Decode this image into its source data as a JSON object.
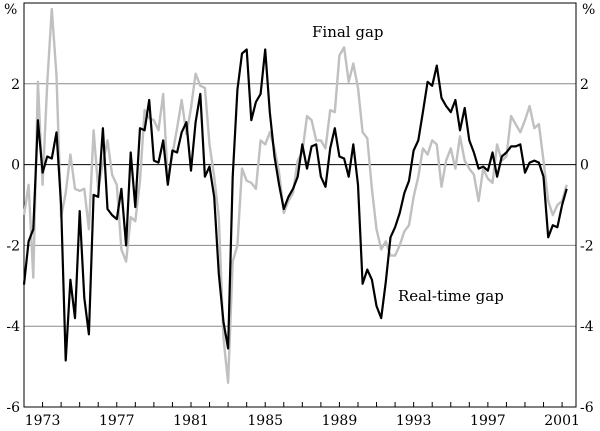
{
  "chart_data": {
    "type": "line",
    "title": "",
    "xlabel": "",
    "ylabel": "%",
    "y_unit_left": "%",
    "y_unit_right": "%",
    "xlim": [
      1972.0,
      2001.75
    ],
    "ylim": [
      -6,
      4
    ],
    "yticks": [
      -6,
      -4,
      -2,
      0,
      2
    ],
    "ytick_labels": [
      "-6",
      "-4",
      "-2",
      "0",
      "2"
    ],
    "xticks": [
      1973,
      1977,
      1981,
      1985,
      1989,
      1993,
      1997,
      2001
    ],
    "xtick_labels": [
      "1973",
      "1977",
      "1981",
      "1985",
      "1989",
      "1993",
      "1997",
      "2001"
    ],
    "gridlines": true,
    "annotations": [
      {
        "text": "Final gap",
        "series": "Final gap"
      },
      {
        "text": "Real-time gap",
        "series": "Real-time gap"
      }
    ],
    "series": [
      {
        "name": "Real-time gap",
        "color": "#000000",
        "points": [
          [
            1972.0,
            -2.97
          ],
          [
            1972.25,
            -1.9
          ],
          [
            1972.5,
            -1.6
          ],
          [
            1972.75,
            1.1
          ],
          [
            1973.0,
            -0.2
          ],
          [
            1973.25,
            0.2
          ],
          [
            1973.5,
            0.15
          ],
          [
            1973.75,
            0.8
          ],
          [
            1974.0,
            -1.0
          ],
          [
            1974.25,
            -4.85
          ],
          [
            1974.5,
            -2.85
          ],
          [
            1974.75,
            -3.8
          ],
          [
            1975.0,
            -1.15
          ],
          [
            1975.25,
            -3.3
          ],
          [
            1975.5,
            -4.2
          ],
          [
            1975.75,
            -0.75
          ],
          [
            1976.0,
            -0.8
          ],
          [
            1976.25,
            0.9
          ],
          [
            1976.5,
            -1.1
          ],
          [
            1976.75,
            -1.25
          ],
          [
            1977.0,
            -1.35
          ],
          [
            1977.25,
            -0.6
          ],
          [
            1977.5,
            -2.0
          ],
          [
            1977.75,
            0.3
          ],
          [
            1978.0,
            -1.05
          ],
          [
            1978.25,
            0.9
          ],
          [
            1978.5,
            0.85
          ],
          [
            1978.75,
            1.6
          ],
          [
            1979.0,
            0.1
          ],
          [
            1979.25,
            0.05
          ],
          [
            1979.5,
            0.6
          ],
          [
            1979.75,
            -0.5
          ],
          [
            1980.0,
            0.35
          ],
          [
            1980.25,
            0.3
          ],
          [
            1980.5,
            0.8
          ],
          [
            1980.75,
            1.05
          ],
          [
            1981.0,
            -0.15
          ],
          [
            1981.25,
            1.05
          ],
          [
            1981.5,
            1.75
          ],
          [
            1981.75,
            -0.3
          ],
          [
            1982.0,
            -0.05
          ],
          [
            1982.25,
            -0.8
          ],
          [
            1982.5,
            -2.7
          ],
          [
            1982.75,
            -3.9
          ],
          [
            1983.0,
            -4.55
          ],
          [
            1983.25,
            -0.3
          ],
          [
            1983.5,
            1.85
          ],
          [
            1983.75,
            2.75
          ],
          [
            1984.0,
            2.85
          ],
          [
            1984.25,
            1.1
          ],
          [
            1984.5,
            1.55
          ],
          [
            1984.75,
            1.75
          ],
          [
            1985.0,
            2.85
          ],
          [
            1985.25,
            1.3
          ],
          [
            1985.5,
            0.2
          ],
          [
            1985.75,
            -0.5
          ],
          [
            1986.0,
            -1.1
          ],
          [
            1986.25,
            -0.8
          ],
          [
            1986.5,
            -0.6
          ],
          [
            1986.75,
            -0.3
          ],
          [
            1987.0,
            0.5
          ],
          [
            1987.25,
            -0.1
          ],
          [
            1987.5,
            0.45
          ],
          [
            1987.75,
            0.5
          ],
          [
            1988.0,
            -0.3
          ],
          [
            1988.25,
            -0.55
          ],
          [
            1988.5,
            0.4
          ],
          [
            1988.75,
            0.9
          ],
          [
            1989.0,
            0.2
          ],
          [
            1989.25,
            0.15
          ],
          [
            1989.5,
            -0.3
          ],
          [
            1989.75,
            0.5
          ],
          [
            1990.0,
            -0.5
          ],
          [
            1990.25,
            -2.95
          ],
          [
            1990.5,
            -2.6
          ],
          [
            1990.75,
            -2.85
          ],
          [
            1991.0,
            -3.5
          ],
          [
            1991.25,
            -3.8
          ],
          [
            1991.5,
            -2.9
          ],
          [
            1991.75,
            -1.8
          ],
          [
            1992.0,
            -1.55
          ],
          [
            1992.25,
            -1.2
          ],
          [
            1992.5,
            -0.7
          ],
          [
            1992.75,
            -0.4
          ],
          [
            1993.0,
            0.35
          ],
          [
            1993.25,
            0.6
          ],
          [
            1993.5,
            1.3
          ],
          [
            1993.75,
            2.05
          ],
          [
            1994.0,
            1.95
          ],
          [
            1994.25,
            2.45
          ],
          [
            1994.5,
            1.65
          ],
          [
            1994.75,
            1.45
          ],
          [
            1995.0,
            1.3
          ],
          [
            1995.25,
            1.6
          ],
          [
            1995.5,
            0.85
          ],
          [
            1995.75,
            1.4
          ],
          [
            1996.0,
            0.6
          ],
          [
            1996.25,
            0.3
          ],
          [
            1996.5,
            -0.1
          ],
          [
            1996.75,
            -0.05
          ],
          [
            1997.0,
            -0.15
          ],
          [
            1997.25,
            0.3
          ],
          [
            1997.5,
            -0.3
          ],
          [
            1997.75,
            0.2
          ],
          [
            1998.0,
            0.3
          ],
          [
            1998.25,
            0.45
          ],
          [
            1998.5,
            0.45
          ],
          [
            1998.75,
            0.5
          ],
          [
            1999.0,
            -0.2
          ],
          [
            1999.25,
            0.05
          ],
          [
            1999.5,
            0.1
          ],
          [
            1999.75,
            0.05
          ],
          [
            2000.0,
            -0.3
          ],
          [
            2000.25,
            -1.8
          ],
          [
            2000.5,
            -1.5
          ],
          [
            2000.75,
            -1.55
          ],
          [
            2001.0,
            -1.0
          ],
          [
            2001.25,
            -0.6
          ]
        ]
      },
      {
        "name": "Final gap",
        "color": "#c0c0c0",
        "points": [
          [
            1972.0,
            -1.25
          ],
          [
            1972.25,
            -0.5
          ],
          [
            1972.5,
            -2.8
          ],
          [
            1972.75,
            2.05
          ],
          [
            1973.0,
            -0.5
          ],
          [
            1973.25,
            2.0
          ],
          [
            1973.5,
            3.85
          ],
          [
            1973.75,
            2.2
          ],
          [
            1974.0,
            -1.3
          ],
          [
            1974.25,
            -0.7
          ],
          [
            1974.5,
            0.25
          ],
          [
            1974.75,
            -0.6
          ],
          [
            1975.0,
            -0.65
          ],
          [
            1975.25,
            -0.6
          ],
          [
            1975.5,
            -1.6
          ],
          [
            1975.75,
            0.85
          ],
          [
            1976.0,
            -0.6
          ],
          [
            1976.25,
            0.05
          ],
          [
            1976.5,
            0.6
          ],
          [
            1976.75,
            -0.25
          ],
          [
            1977.0,
            -0.5
          ],
          [
            1977.25,
            -2.1
          ],
          [
            1977.5,
            -2.4
          ],
          [
            1977.75,
            -1.3
          ],
          [
            1978.0,
            -1.4
          ],
          [
            1978.25,
            -0.4
          ],
          [
            1978.5,
            1.35
          ],
          [
            1978.75,
            1.15
          ],
          [
            1979.0,
            1.1
          ],
          [
            1979.25,
            0.85
          ],
          [
            1979.5,
            1.75
          ],
          [
            1979.75,
            -0.4
          ],
          [
            1980.0,
            0.25
          ],
          [
            1980.25,
            0.9
          ],
          [
            1980.5,
            1.6
          ],
          [
            1980.75,
            0.75
          ],
          [
            1981.0,
            1.4
          ],
          [
            1981.25,
            2.25
          ],
          [
            1981.5,
            1.95
          ],
          [
            1981.75,
            1.9
          ],
          [
            1982.0,
            0.5
          ],
          [
            1982.25,
            -0.3
          ],
          [
            1982.5,
            -1.3
          ],
          [
            1982.75,
            -4.3
          ],
          [
            1983.0,
            -5.4
          ],
          [
            1983.25,
            -2.4
          ],
          [
            1983.5,
            -2.0
          ],
          [
            1983.75,
            -0.1
          ],
          [
            1984.0,
            -0.4
          ],
          [
            1984.25,
            -0.45
          ],
          [
            1984.5,
            -0.6
          ],
          [
            1984.75,
            0.6
          ],
          [
            1985.0,
            0.5
          ],
          [
            1985.25,
            0.8
          ],
          [
            1985.5,
            0.4
          ],
          [
            1985.75,
            -0.2
          ],
          [
            1986.0,
            -1.2
          ],
          [
            1986.25,
            -0.9
          ],
          [
            1986.5,
            -0.7
          ],
          [
            1986.75,
            0.1
          ],
          [
            1987.0,
            0.3
          ],
          [
            1987.25,
            1.2
          ],
          [
            1987.5,
            1.1
          ],
          [
            1987.75,
            0.6
          ],
          [
            1988.0,
            0.6
          ],
          [
            1988.25,
            0.4
          ],
          [
            1988.5,
            1.35
          ],
          [
            1988.75,
            1.3
          ],
          [
            1989.0,
            2.7
          ],
          [
            1989.25,
            2.9
          ],
          [
            1989.5,
            2.05
          ],
          [
            1989.75,
            2.5
          ],
          [
            1990.0,
            1.9
          ],
          [
            1990.25,
            0.8
          ],
          [
            1990.5,
            0.65
          ],
          [
            1990.75,
            -0.6
          ],
          [
            1991.0,
            -1.6
          ],
          [
            1991.25,
            -2.1
          ],
          [
            1991.5,
            -1.9
          ],
          [
            1991.75,
            -2.25
          ],
          [
            1992.0,
            -2.25
          ],
          [
            1992.25,
            -2.0
          ],
          [
            1992.5,
            -1.65
          ],
          [
            1992.75,
            -1.5
          ],
          [
            1993.0,
            -0.8
          ],
          [
            1993.25,
            -0.3
          ],
          [
            1993.5,
            0.4
          ],
          [
            1993.75,
            0.25
          ],
          [
            1994.0,
            0.6
          ],
          [
            1994.25,
            0.5
          ],
          [
            1994.5,
            -0.55
          ],
          [
            1994.75,
            0.1
          ],
          [
            1995.0,
            0.4
          ],
          [
            1995.25,
            -0.1
          ],
          [
            1995.5,
            0.7
          ],
          [
            1995.75,
            0.1
          ],
          [
            1996.0,
            -0.1
          ],
          [
            1996.25,
            -0.25
          ],
          [
            1996.5,
            -0.9
          ],
          [
            1996.75,
            -0.1
          ],
          [
            1997.0,
            -0.35
          ],
          [
            1997.25,
            -0.45
          ],
          [
            1997.5,
            0.5
          ],
          [
            1997.75,
            0.1
          ],
          [
            1998.0,
            0.2
          ],
          [
            1998.25,
            1.2
          ],
          [
            1998.5,
            1.0
          ],
          [
            1998.75,
            0.8
          ],
          [
            1999.0,
            1.1
          ],
          [
            1999.25,
            1.45
          ],
          [
            1999.5,
            0.9
          ],
          [
            1999.75,
            1.0
          ],
          [
            2000.0,
            0.1
          ],
          [
            2000.25,
            -0.9
          ],
          [
            2000.5,
            -1.25
          ],
          [
            2000.75,
            -1.0
          ],
          [
            2001.0,
            -0.9
          ],
          [
            2001.25,
            -0.5
          ]
        ]
      }
    ]
  }
}
